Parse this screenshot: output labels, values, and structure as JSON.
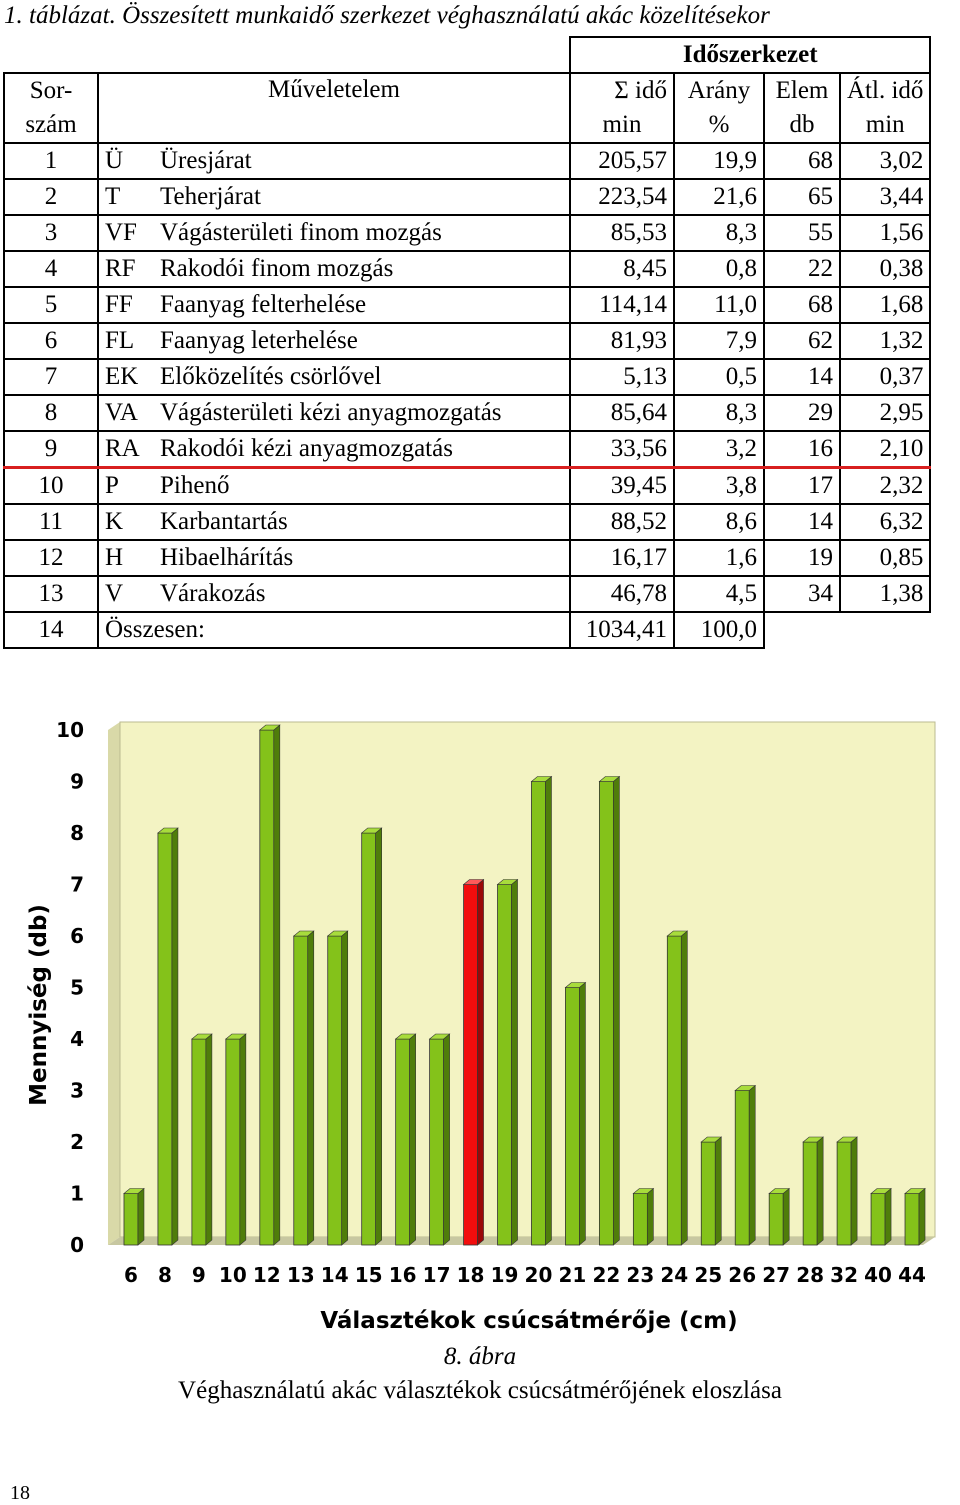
{
  "table_caption": "1. táblázat. Összesített munkaidő szerkezet véghasználatú akác közelítésekor",
  "table": {
    "group_header": "Időszerkezet",
    "header": {
      "sorszam_1": "Sor-",
      "sorszam_2": "szám",
      "muveletelem": "Műveletelem",
      "ido": "Σ idő",
      "ido_unit": "min",
      "arany": "Arány",
      "arany_unit": "%",
      "elem": "Elem",
      "elem_unit": "db",
      "atl": "Átl. idő",
      "atl_unit": "min"
    },
    "rows": [
      {
        "n": "1",
        "code": "Ü",
        "name": "Üresjárat",
        "ido": "205,57",
        "arany": "19,9",
        "elem": "68",
        "atl": "3,02"
      },
      {
        "n": "2",
        "code": "T",
        "name": "Teherjárat",
        "ido": "223,54",
        "arany": "21,6",
        "elem": "65",
        "atl": "3,44"
      },
      {
        "n": "3",
        "code": "VF",
        "name": "Vágásterületi finom mozgás",
        "ido": "85,53",
        "arany": "8,3",
        "elem": "55",
        "atl": "1,56"
      },
      {
        "n": "4",
        "code": "RF",
        "name": "Rakodói finom mozgás",
        "ido": "8,45",
        "arany": "0,8",
        "elem": "22",
        "atl": "0,38"
      },
      {
        "n": "5",
        "code": "FF",
        "name": "Faanyag felterhelése",
        "ido": "114,14",
        "arany": "11,0",
        "elem": "68",
        "atl": "1,68"
      },
      {
        "n": "6",
        "code": "FL",
        "name": "Faanyag leterhelése",
        "ido": "81,93",
        "arany": "7,9",
        "elem": "62",
        "atl": "1,32"
      },
      {
        "n": "7",
        "code": "EK",
        "name": "Előközelítés csörlővel",
        "ido": "5,13",
        "arany": "0,5",
        "elem": "14",
        "atl": "0,37"
      },
      {
        "n": "8",
        "code": "VA",
        "name": "Vágásterületi kézi anyagmozgatás",
        "ido": "85,64",
        "arany": "8,3",
        "elem": "29",
        "atl": "2,95"
      },
      {
        "n": "9",
        "code": "RA",
        "name": "Rakodói kézi anyagmozgatás",
        "ido": "33,56",
        "arany": "3,2",
        "elem": "16",
        "atl": "2,10"
      },
      {
        "n": "10",
        "code": "P",
        "name": "Pihenő",
        "ido": "39,45",
        "arany": "3,8",
        "elem": "17",
        "atl": "2,32"
      },
      {
        "n": "11",
        "code": "K",
        "name": "Karbantartás",
        "ido": "88,52",
        "arany": "8,6",
        "elem": "14",
        "atl": "6,32"
      },
      {
        "n": "12",
        "code": "H",
        "name": "Hibaelhárítás",
        "ido": "16,17",
        "arany": "1,6",
        "elem": "19",
        "atl": "0,85"
      },
      {
        "n": "13",
        "code": "V",
        "name": "Várakozás",
        "ido": "46,78",
        "arany": "4,5",
        "elem": "34",
        "atl": "1,38"
      }
    ],
    "total": {
      "n": "14",
      "label": "Összesen:",
      "ido": "1034,41",
      "arany": "100,0"
    }
  },
  "chart_data": {
    "type": "bar",
    "categories": [
      "6",
      "8",
      "9",
      "10",
      "12",
      "13",
      "14",
      "15",
      "16",
      "17",
      "18",
      "19",
      "20",
      "21",
      "22",
      "23",
      "24",
      "25",
      "26",
      "27",
      "28",
      "32",
      "40",
      "44"
    ],
    "values": [
      1,
      8,
      4,
      4,
      10,
      6,
      6,
      8,
      4,
      4,
      7,
      7,
      9,
      5,
      9,
      1,
      6,
      2,
      3,
      1,
      2,
      2,
      1,
      1
    ],
    "highlight_category": "18",
    "xlabel": "Választékok csúcsátmérője (cm)",
    "ylabel": "Mennyiség (db)",
    "ylim": [
      0,
      10
    ],
    "yticks": [
      "0",
      "1",
      "2",
      "3",
      "4",
      "5",
      "6",
      "7",
      "8",
      "9",
      "10"
    ],
    "colors": {
      "bar": "#84c21a",
      "bar_dark": "#4f7d0a",
      "bar_top": "#a8dc3c",
      "highlight": "#f20d0d",
      "highlight_dark": "#9a0808",
      "highlight_top": "#ff5a5a",
      "plot_bg": "#f3f3c3",
      "axis_text": "#000000"
    },
    "grid": false
  },
  "figure_number": "8. ábra",
  "figure_title": "Véghasználatú akác választékok csúcsátmérőjének eloszlása",
  "page_number": "18"
}
